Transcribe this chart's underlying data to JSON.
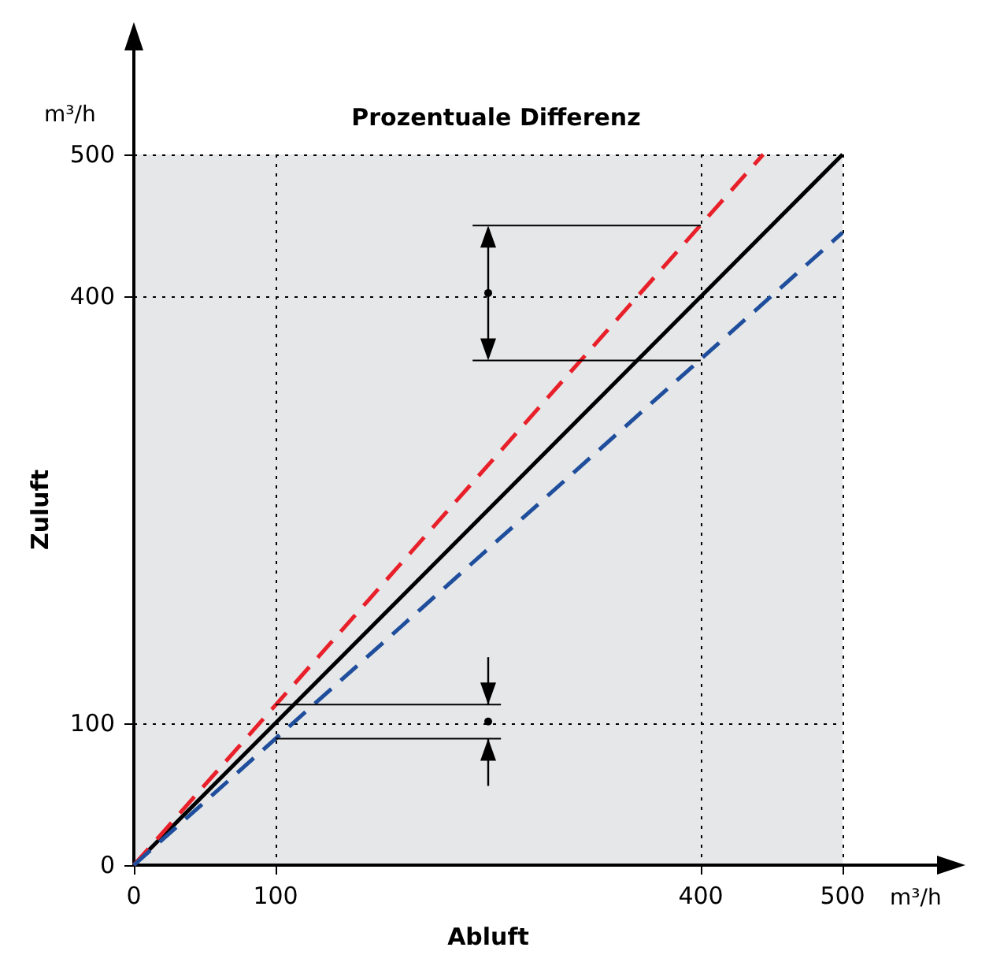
{
  "chart_data": {
    "type": "line",
    "title": "Prozentuale Differenz",
    "xlabel": "Abluft",
    "ylabel": "Zuluft",
    "annotations": [
      "m³/h",
      "m³/h"
    ],
    "xlim": [
      0,
      500
    ],
    "ylim": [
      0,
      500
    ],
    "xticks": [
      0,
      100,
      400,
      500
    ],
    "yticks": [
      0,
      100,
      400,
      500
    ],
    "grid": true,
    "marker": "none",
    "series": [
      {
        "color": "#000000",
        "x": [
          0,
          500
        ],
        "values": [
          0,
          500
        ],
        "line_style": "solid"
      },
      {
        "color": "#e8202a",
        "x": [
          0,
          444
        ],
        "values": [
          0,
          500
        ],
        "line_style": "dashed"
      },
      {
        "color": "#1f4e9c",
        "x": [
          0,
          500
        ],
        "values": [
          0,
          445
        ],
        "line_style": "dashed"
      },
      {
        "color": "#000000",
        "x": [
          239,
          400
        ],
        "values": [
          450,
          450
        ],
        "line_style": "solid"
      },
      {
        "color": "#000000",
        "x": [
          239,
          400
        ],
        "values": [
          355,
          355
        ],
        "line_style": "solid"
      },
      {
        "color": "#000000",
        "x": [
          100,
          259
        ],
        "values": [
          113,
          113
        ],
        "line_style": "solid"
      },
      {
        "color": "#000000",
        "x": [
          100,
          259
        ],
        "values": [
          89,
          89
        ],
        "line_style": "solid"
      }
    ]
  }
}
